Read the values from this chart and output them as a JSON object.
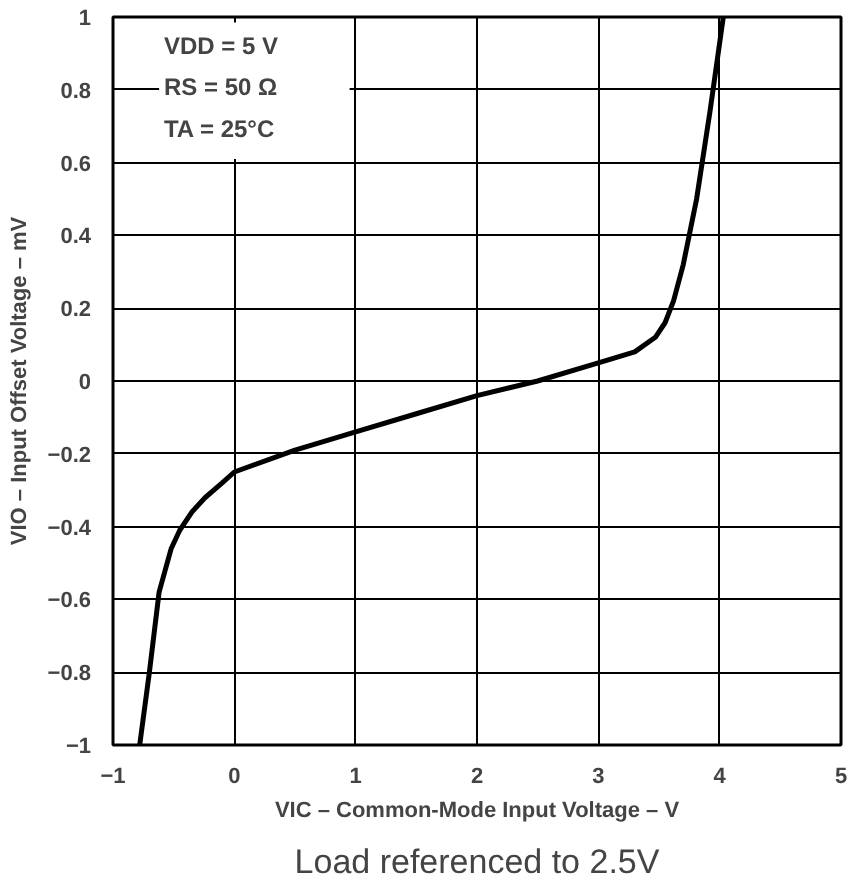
{
  "chart_data": {
    "type": "line",
    "xlabel": "VIC – Common-Mode Input Voltage – V",
    "ylabel": "VIO – Input Offset Voltage – mV",
    "annotations": [
      "VDD = 5 V",
      "RS = 50 Ω",
      "TA = 25°C",
      "Load referenced to 2.5V"
    ],
    "x": [
      -0.78,
      -0.7,
      -0.62,
      -0.52,
      -0.45,
      -0.35,
      -0.24,
      -0.1,
      0,
      0.5,
      1,
      1.5,
      2,
      2.5,
      3,
      3.3,
      3.47,
      3.55,
      3.62,
      3.7,
      3.81,
      3.92,
      4.03
    ],
    "series": [
      {
        "color": "#000000",
        "values": [
          -1,
          -0.8,
          -0.58,
          -0.46,
          -0.41,
          -0.36,
          -0.32,
          -0.28,
          -0.25,
          -0.19,
          -0.14,
          -0.09,
          -0.04,
          0.0,
          0.05,
          0.08,
          0.12,
          0.16,
          0.22,
          0.32,
          0.5,
          0.74,
          1.0
        ]
      }
    ],
    "xlim": [
      -1,
      5
    ],
    "ylim": [
      -1,
      1
    ],
    "xticks": [
      {
        "value": -1,
        "label": "−1"
      },
      0,
      1,
      2,
      3,
      4,
      5
    ],
    "yticks": [
      {
        "value": -1,
        "label": "−1"
      },
      {
        "value": -0.8,
        "label": "−0.8"
      },
      {
        "value": -0.6,
        "label": "−0.6"
      },
      {
        "value": -0.4,
        "label": "−0.4"
      },
      {
        "value": -0.2,
        "label": "−0.2"
      },
      0,
      0.2,
      0.4,
      0.6,
      0.8,
      1
    ],
    "grid": true,
    "marker": "none",
    "line_style": "solid"
  }
}
